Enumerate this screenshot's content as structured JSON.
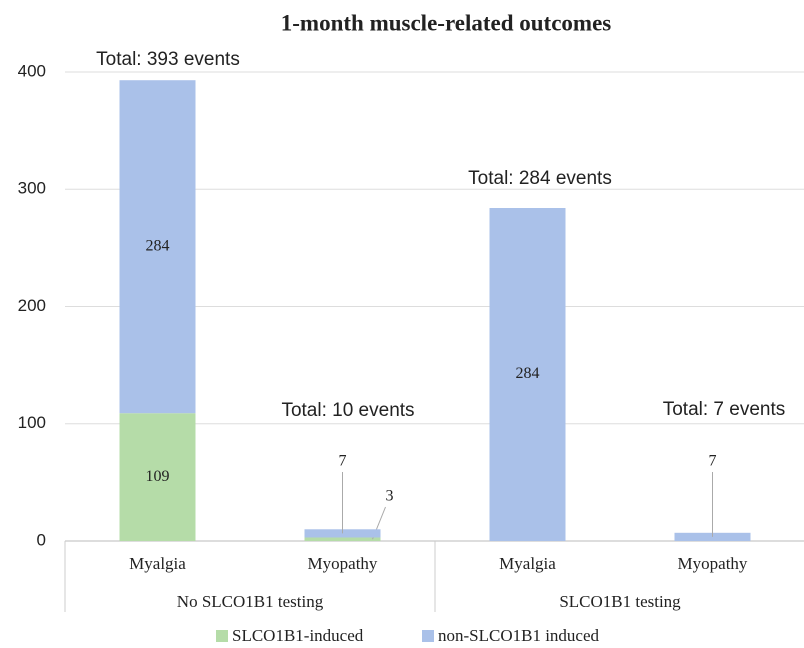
{
  "chart_data": {
    "type": "stacked_bar",
    "title": "1-month muscle-related outcomes",
    "categories": [
      "Myalgia",
      "Myopathy",
      "Myalgia",
      "Myopathy"
    ],
    "groups": [
      "No SLCO1B1 testing",
      "SLCO1B1 testing"
    ],
    "series": [
      {
        "name": "SLCO1B1-induced",
        "color": "#b5dca8",
        "values": [
          109,
          3,
          0,
          0
        ]
      },
      {
        "name": "non-SLCO1B1 induced",
        "color": "#aac1e9",
        "values": [
          284,
          7,
          284,
          7
        ]
      }
    ],
    "annotations": [
      "Total: 393 events",
      "Total: 10 events",
      "Total: 284 events",
      "Total: 7 events"
    ],
    "ylim": [
      0,
      400
    ],
    "yticks": [
      0,
      100,
      200,
      300,
      400
    ],
    "grid": true,
    "legend": "bottom"
  }
}
